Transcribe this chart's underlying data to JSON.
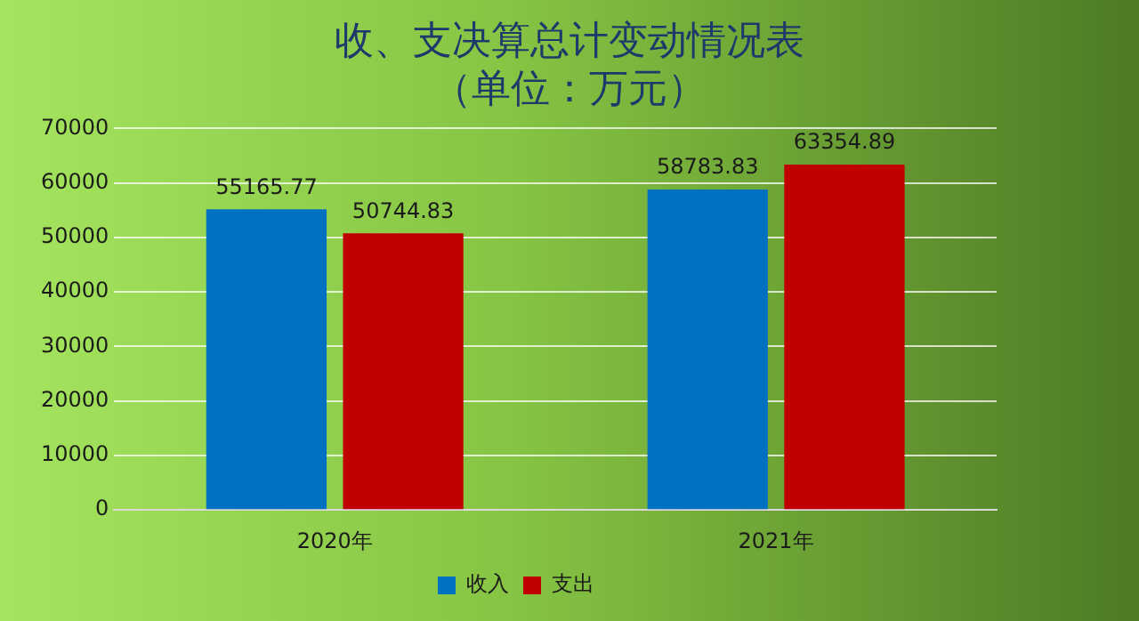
{
  "chart_data": {
    "type": "bar",
    "title": "收、支决算总计变动情况表",
    "subtitle": "（单位：万元）",
    "categories": [
      "2020年",
      "2021年"
    ],
    "series": [
      {
        "name": "收入",
        "color": "#0070c0",
        "values": [
          55165.77,
          58783.83
        ]
      },
      {
        "name": "支出",
        "color": "#c00000",
        "values": [
          50744.83,
          63354.89
        ]
      }
    ],
    "ylim": [
      0,
      70000
    ],
    "yticks": [
      0,
      10000,
      20000,
      30000,
      40000,
      50000,
      60000,
      70000
    ],
    "grid": "y",
    "legend": "bottom",
    "data_labels": true
  }
}
